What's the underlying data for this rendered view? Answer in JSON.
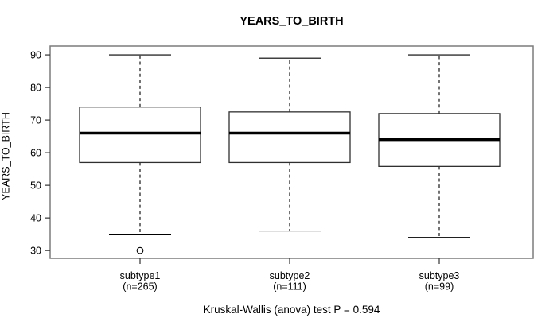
{
  "colors": {
    "background": "#ffffff",
    "frame": "#7c7c7c",
    "axis": "#333333",
    "box_border": "#2f2f2f",
    "line": "#000000",
    "box_fill": "#ffffff"
  },
  "chart_data": {
    "type": "boxplot",
    "title": "YEARS_TO_BIRTH",
    "ylabel": "YEARS_TO_BIRTH",
    "xlabel": "",
    "caption": "Kruskal-Wallis (anova) test P = 0.594",
    "grid": false,
    "legend": "none",
    "yticks": [
      30,
      40,
      50,
      60,
      70,
      80,
      90
    ],
    "ylim": [
      27.6,
      92.7
    ],
    "groups": [
      {
        "label": "subtype1",
        "count_label": "(n=265)",
        "n": 265,
        "whisker_low": 35,
        "q1": 57,
        "median": 66,
        "q3": 74,
        "whisker_high": 90,
        "outliers": [
          30
        ]
      },
      {
        "label": "subtype2",
        "count_label": "(n=111)",
        "n": 111,
        "whisker_low": 36,
        "q1": 57,
        "median": 66,
        "q3": 72.5,
        "whisker_high": 89,
        "outliers": []
      },
      {
        "label": "subtype3",
        "count_label": "(n=99)",
        "n": 99,
        "whisker_low": 34,
        "q1": 55.8,
        "median": 64,
        "q3": 72,
        "whisker_high": 90,
        "outliers": []
      }
    ]
  }
}
